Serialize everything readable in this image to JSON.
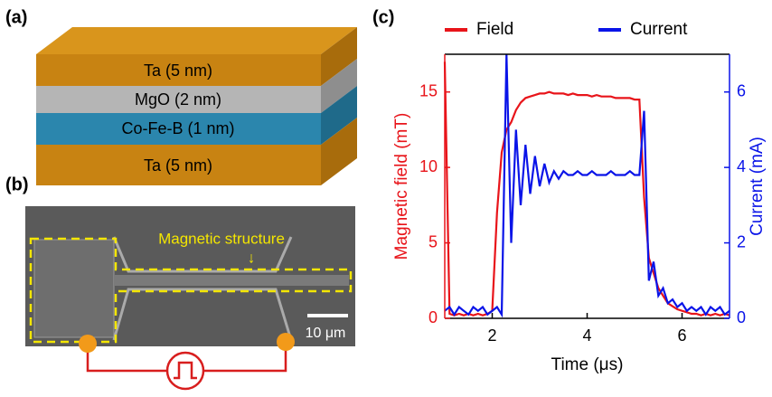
{
  "panel_labels": [
    "(a)",
    "(b)",
    "(c)"
  ],
  "layers": [
    "Ta (5 nm)",
    "MgO (2 nm)",
    "Co-Fe-B (1 nm)",
    "Ta (5 nm)"
  ],
  "micrograph": {
    "annotation": "Magnetic structure",
    "arrow": "↓",
    "scale_bar": "10 μm"
  },
  "chart_data": {
    "type": "line",
    "xlabel": "Time (μs)",
    "ylabel": "Magnetic field (mT)",
    "y2label": "Current (mA)",
    "xlim": [
      1,
      7
    ],
    "xticks": [
      2,
      4,
      6
    ],
    "ylim": [
      0,
      17.5
    ],
    "yticks": [
      0,
      5,
      10,
      15
    ],
    "y2lim": [
      0,
      7
    ],
    "y2ticks": [
      0,
      2,
      4,
      6
    ],
    "legend": "top",
    "x": [
      1.0,
      1.1,
      1.2,
      1.3,
      1.4,
      1.5,
      1.6,
      1.7,
      1.8,
      1.9,
      2.0,
      2.1,
      2.2,
      2.3,
      2.4,
      2.5,
      2.6,
      2.7,
      2.8,
      2.9,
      3.0,
      3.1,
      3.2,
      3.3,
      3.4,
      3.5,
      3.6,
      3.7,
      3.8,
      3.9,
      4.0,
      4.1,
      4.2,
      4.3,
      4.4,
      4.5,
      4.6,
      4.7,
      4.8,
      4.9,
      5.0,
      5.1,
      5.2,
      5.3,
      5.4,
      5.5,
      5.6,
      5.7,
      5.8,
      5.9,
      6.0,
      6.1,
      6.2,
      6.3,
      6.4,
      6.5,
      6.6,
      6.7,
      6.8,
      6.9,
      7.0
    ],
    "series": [
      {
        "name": "Field",
        "color": "#e8141a",
        "values": [
          17,
          0.3,
          0.2,
          0.3,
          0.2,
          0.3,
          0.2,
          0.3,
          0.2,
          0.3,
          0.5,
          7,
          11,
          12.5,
          13,
          13.8,
          14.3,
          14.6,
          14.7,
          14.8,
          14.9,
          14.9,
          15,
          14.9,
          14.9,
          14.9,
          14.8,
          14.9,
          14.8,
          14.8,
          14.8,
          14.7,
          14.8,
          14.7,
          14.7,
          14.7,
          14.6,
          14.6,
          14.6,
          14.6,
          14.5,
          14.5,
          8,
          4,
          3,
          2,
          1.5,
          1,
          0.8,
          0.6,
          0.5,
          0.4,
          0.3,
          0.3,
          0.2,
          0.3,
          0.2,
          0.3,
          0.2,
          0.3,
          0.2
        ]
      },
      {
        "name": "Current",
        "color": "#0a14e8",
        "axis": "y2",
        "values": [
          0.2,
          0.3,
          0.1,
          0.3,
          0.2,
          0.1,
          0.3,
          0.2,
          0.3,
          0.1,
          0.2,
          0.3,
          0.1,
          7,
          2,
          5,
          3,
          4.6,
          3.3,
          4.3,
          3.5,
          4.1,
          3.6,
          3.9,
          3.7,
          3.9,
          3.8,
          3.8,
          3.9,
          3.8,
          3.8,
          3.9,
          3.8,
          3.8,
          3.8,
          3.9,
          3.8,
          3.8,
          3.8,
          3.9,
          3.8,
          3.8,
          5.5,
          1,
          1.5,
          0.6,
          0.8,
          0.4,
          0.5,
          0.3,
          0.4,
          0.2,
          0.3,
          0.2,
          0.3,
          0.1,
          0.3,
          0.2,
          0.3,
          0.1,
          0.2
        ]
      }
    ]
  }
}
